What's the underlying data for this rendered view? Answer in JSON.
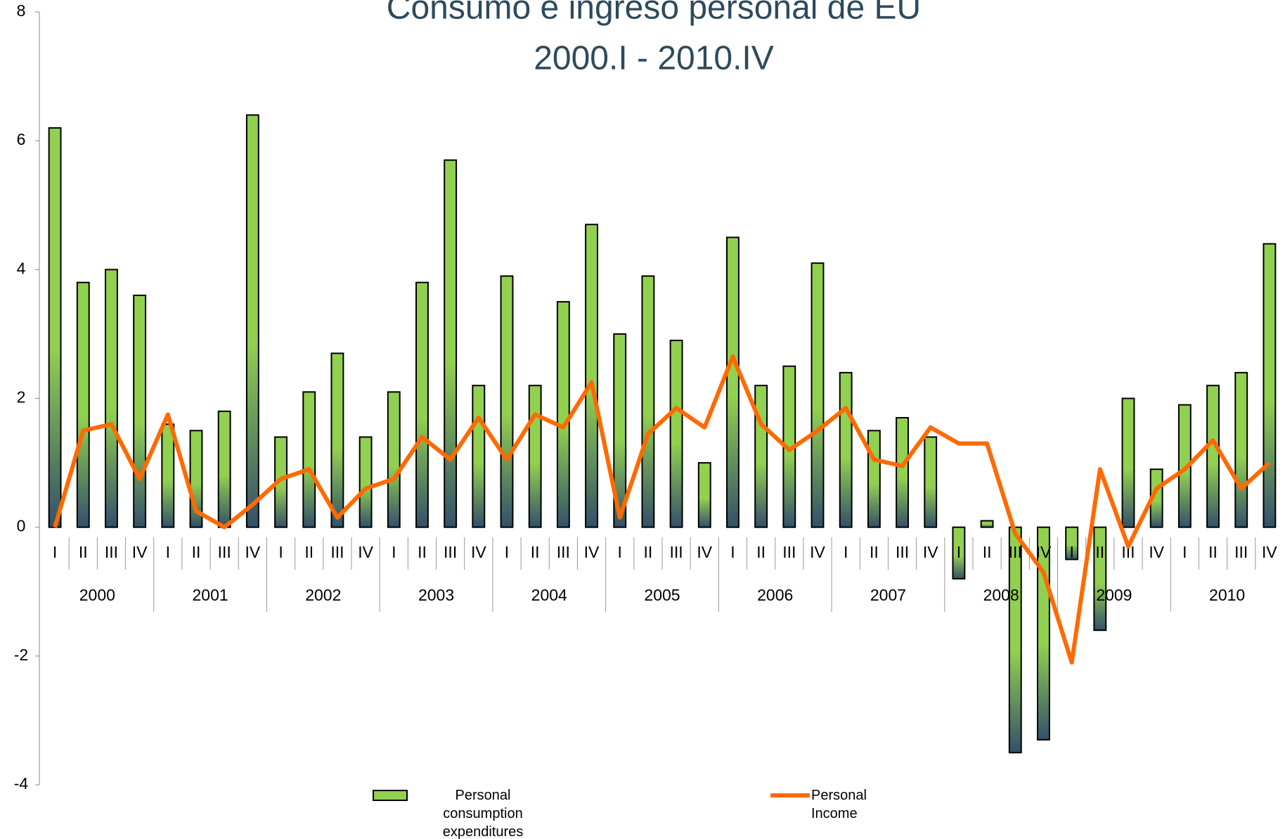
{
  "chart_data": {
    "type": "bar-line",
    "title": "Consumo e ingreso personal de EU",
    "subtitle": "2000.I - 2010.IV",
    "categories": [
      "I",
      "II",
      "III",
      "IV",
      "I",
      "II",
      "III",
      "IV",
      "I",
      "II",
      "III",
      "IV",
      "I",
      "II",
      "III",
      "IV",
      "I",
      "II",
      "III",
      "IV",
      "I",
      "II",
      "III",
      "IV",
      "I",
      "II",
      "III",
      "IV",
      "I",
      "II",
      "III",
      "IV",
      "I",
      "II",
      "III",
      "IV",
      "I",
      "II",
      "III",
      "IV",
      "I",
      "II",
      "III",
      "IV"
    ],
    "groups": [
      "2000",
      "2001",
      "2002",
      "2003",
      "2004",
      "2005",
      "2006",
      "2007",
      "2008",
      "2009",
      "2010"
    ],
    "series": [
      {
        "name": "Personal consumption expenditures",
        "type": "bar",
        "color": "#92d050",
        "values": [
          6.2,
          3.8,
          4.0,
          3.6,
          1.6,
          1.5,
          1.8,
          6.4,
          1.4,
          2.1,
          2.7,
          1.4,
          2.1,
          3.8,
          5.7,
          2.2,
          3.9,
          2.2,
          3.5,
          4.7,
          3.0,
          3.9,
          2.9,
          1.0,
          4.5,
          2.2,
          2.5,
          4.1,
          2.4,
          1.5,
          1.7,
          1.4,
          -0.8,
          0.1,
          -3.5,
          -3.3,
          -0.5,
          -1.6,
          2.0,
          0.9,
          1.9,
          2.2,
          2.4,
          4.4
        ]
      },
      {
        "name": "Personal Income",
        "type": "line",
        "color": "#ff6a00",
        "values": [
          0.0,
          1.5,
          1.6,
          0.75,
          1.75,
          0.25,
          0.0,
          0.35,
          0.75,
          0.9,
          0.15,
          0.6,
          0.75,
          1.4,
          1.05,
          1.7,
          1.05,
          1.75,
          1.55,
          2.25,
          0.15,
          1.45,
          1.85,
          1.55,
          2.65,
          1.6,
          1.2,
          1.5,
          1.85,
          1.05,
          0.95,
          1.55,
          1.3,
          1.3,
          -0.1,
          -0.7,
          -2.1,
          0.9,
          -0.3,
          0.6,
          0.9,
          1.35,
          0.6,
          1.0
        ]
      }
    ],
    "ylim": [
      -4,
      8
    ],
    "yticks": [
      -4,
      -2,
      0,
      2,
      4,
      6,
      8
    ],
    "grid": false
  }
}
